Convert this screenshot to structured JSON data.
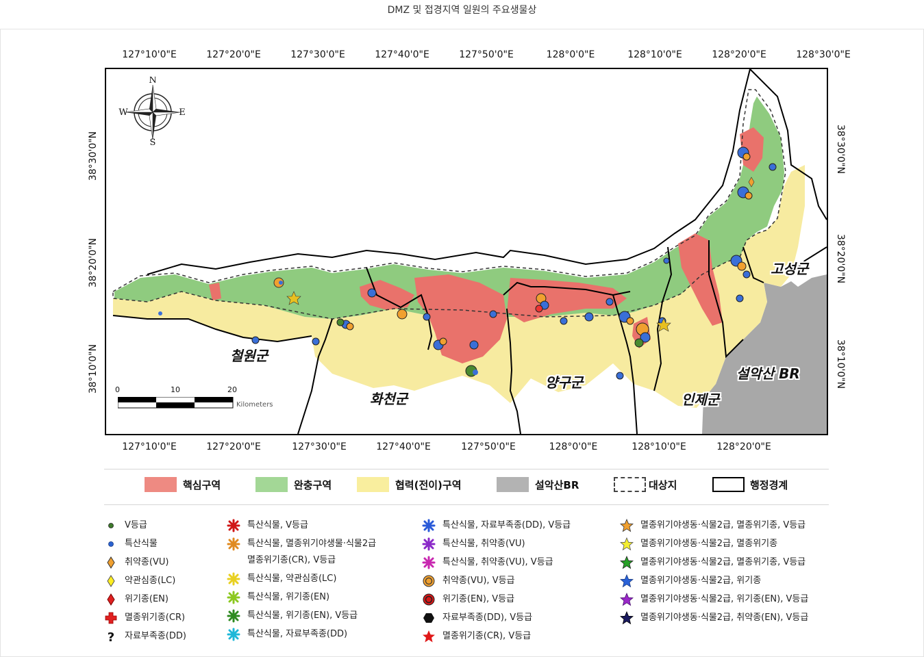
{
  "page": {
    "title": "DMZ 및 접경지역 일원의 주요생물상"
  },
  "map": {
    "lon_labels": [
      "127°10'0\"E",
      "127°20'0\"E",
      "127°30'0\"E",
      "127°40'0\"E",
      "127°50'0\"E",
      "128°0'0\"E",
      "128°10'0\"E",
      "128°20'0\"E",
      "128°30'0\"E"
    ],
    "lon_bottom_labels": [
      "127°10'0\"E",
      "127°20'0\"E",
      "127°30'0\"E",
      "127°40'0\"E",
      "127°50'0\"E",
      "128°0'0\"E",
      "128°10'0\"E",
      "128°20'0\"E"
    ],
    "lat_labels": [
      "38°30'0\"N",
      "38°20'0\"N",
      "38°10'0\"N"
    ],
    "counties": {
      "cheorwon": "철원군",
      "hwacheon": "화천군",
      "yanggu": "양구군",
      "inje": "인제군",
      "goseong": "고성군",
      "seoraksan": "설악산 BR"
    },
    "compass": {
      "n": "N",
      "s": "S",
      "e": "E",
      "w": "W"
    },
    "scale": {
      "ticks": [
        "0",
        "10",
        "20"
      ],
      "unit": "Kilometers"
    },
    "colors": {
      "core": "#e9726b",
      "buffer": "#8fcb7f",
      "transition": "#f7eba0",
      "seorak": "#a8a8a8",
      "boundary": "#000000"
    }
  },
  "zone_legend": [
    {
      "label": "핵심구역",
      "color": "#ee8a82",
      "style": "fill"
    },
    {
      "label": "완충구역",
      "color": "#a3d796",
      "style": "fill"
    },
    {
      "label": "협력(전이)구역",
      "color": "#f9ee9e",
      "style": "fill"
    },
    {
      "label": "설악산BR",
      "color": "#b3b3b3",
      "style": "fill"
    },
    {
      "label": "대상지",
      "color": "#ffffff",
      "style": "dashed"
    },
    {
      "label": "행정경계",
      "color": "#ffffff",
      "style": "solid"
    }
  ],
  "symbol_legend": [
    [
      {
        "icon": "small-dot-green",
        "label": "V등급"
      },
      {
        "icon": "small-dot-blue",
        "label": "특산식물"
      },
      {
        "icon": "diamond-orange",
        "label": "취약종(VU)"
      },
      {
        "icon": "diamond-yellow",
        "label": "약관심종(LC)"
      },
      {
        "icon": "diamond-red",
        "label": "위기종(EN)"
      },
      {
        "icon": "cross-red",
        "label": "멸종위기종(CR)"
      },
      {
        "icon": "question-black",
        "label": "자료부족종(DD)"
      }
    ],
    [
      {
        "icon": "burst-red",
        "label": "특산식물, V등급"
      },
      {
        "icon": "burst-orange",
        "label": "특산식물, 멸종위기야생물·식물2급"
      },
      {
        "icon": "none",
        "label": "멸종위기종(CR), V등급"
      },
      {
        "icon": "burst-yellow",
        "label": "특산식물, 약관심종(LC)"
      },
      {
        "icon": "burst-lime",
        "label": "특산식물, 위기종(EN)"
      },
      {
        "icon": "burst-green",
        "label": "특산식물, 위기종(EN), V등급"
      },
      {
        "icon": "burst-cyan",
        "label": "특산식물, 자료부족종(DD)"
      }
    ],
    [
      {
        "icon": "burst-blue",
        "label": "특산식물, 자료부족종(DD), V등급"
      },
      {
        "icon": "burst-purple",
        "label": "특산식물, 취약종(VU)"
      },
      {
        "icon": "burst-magenta",
        "label": "특산식물, 취약종(VU), V등급"
      },
      {
        "icon": "ring-orange",
        "label": "취약종(VU), V등급"
      },
      {
        "icon": "ring-red",
        "label": "위기종(EN), V등급"
      },
      {
        "icon": "hexagon-black",
        "label": "자료부족종(DD), V등급"
      },
      {
        "icon": "star-red",
        "label": "멸종위기종(CR), V등급"
      }
    ],
    [
      {
        "icon": "star-orange",
        "label": "멸종위기야생동·식물2급, 멸종위기종, V등급"
      },
      {
        "icon": "star-yellow",
        "label": "멸종위기야생동·식물2급, 멸종위기종"
      },
      {
        "icon": "star-green",
        "label": "멸종위기야생동·식물2급, 멸종위기종, V등급"
      },
      {
        "icon": "star-blue",
        "label": "멸종위기야생동·식물2급, 위기종"
      },
      {
        "icon": "star-purple",
        "label": "멸종위기야생동·식물2급, 위기종(EN), V등급"
      },
      {
        "icon": "star-navy",
        "label": "멸종위기야생동·식물2급, 취약종(EN), V등급"
      }
    ]
  ]
}
